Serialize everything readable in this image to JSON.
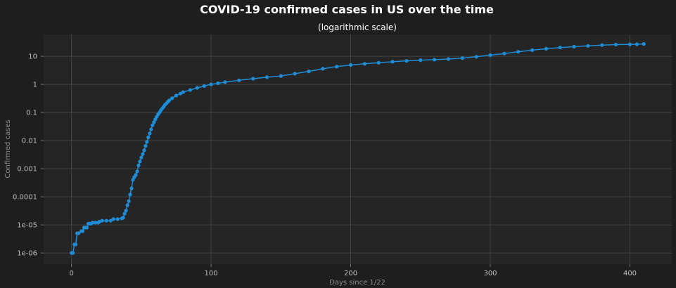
{
  "chart_data": {
    "type": "line",
    "title": "COVID-19 confirmed cases in US over the time",
    "subtitle": "(logarithmic scale)",
    "xlabel": "Days since 1/22",
    "ylabel": "Confirmed cases",
    "y_scale": "log",
    "xlim": [
      -20,
      430
    ],
    "ylim": [
      4e-07,
      60
    ],
    "x_ticks": [
      0,
      100,
      200,
      300,
      400
    ],
    "x_tick_labels": [
      "0",
      "100",
      "200",
      "300",
      "400"
    ],
    "y_ticks": [
      1e-06,
      1e-05,
      0.0001,
      0.001,
      0.01,
      0.1,
      1,
      10
    ],
    "y_tick_labels": [
      "1e-06",
      "1e-05",
      "0.0001",
      "0.001",
      "0.01",
      "0.1",
      "1",
      "10"
    ],
    "grid": true,
    "colors": {
      "background": "#1e1e1e",
      "plot_background": "#252525",
      "grid": "#4a4a4a",
      "series": "#1f8dd6"
    },
    "series": [
      {
        "marker": "circle",
        "points": [
          [
            0,
            1e-06
          ],
          [
            1,
            1e-06
          ],
          [
            2,
            2e-06
          ],
          [
            3,
            2e-06
          ],
          [
            4,
            5e-06
          ],
          [
            5,
            5e-06
          ],
          [
            7,
            6e-06
          ],
          [
            8,
            6e-06
          ],
          [
            9,
            8e-06
          ],
          [
            10,
            8e-06
          ],
          [
            11,
            8e-06
          ],
          [
            12,
            1.1e-05
          ],
          [
            13,
            1.1e-05
          ],
          [
            14,
            1.1e-05
          ],
          [
            15,
            1.2e-05
          ],
          [
            17,
            1.2e-05
          ],
          [
            19,
            1.2e-05
          ],
          [
            20,
            1.3e-05
          ],
          [
            22,
            1.4e-05
          ],
          [
            25,
            1.4e-05
          ],
          [
            28,
            1.4e-05
          ],
          [
            30,
            1.6e-05
          ],
          [
            33,
            1.6e-05
          ],
          [
            36,
            1.7e-05
          ],
          [
            37,
            1.8e-05
          ],
          [
            38,
            2.5e-05
          ],
          [
            39,
            3.2e-05
          ],
          [
            40,
            5e-05
          ],
          [
            41,
            7e-05
          ],
          [
            42,
            0.00012
          ],
          [
            43,
            0.0002
          ],
          [
            44,
            0.0004
          ],
          [
            45,
            0.0005
          ],
          [
            46,
            0.0006
          ],
          [
            47,
            0.0008
          ],
          [
            48,
            0.0013
          ],
          [
            49,
            0.0018
          ],
          [
            50,
            0.0025
          ],
          [
            51,
            0.0033
          ],
          [
            52,
            0.0045
          ],
          [
            53,
            0.0065
          ],
          [
            54,
            0.009
          ],
          [
            55,
            0.013
          ],
          [
            56,
            0.018
          ],
          [
            57,
            0.025
          ],
          [
            58,
            0.035
          ],
          [
            59,
            0.045
          ],
          [
            60,
            0.057
          ],
          [
            61,
            0.07
          ],
          [
            62,
            0.085
          ],
          [
            63,
            0.1
          ],
          [
            64,
            0.12
          ],
          [
            65,
            0.14
          ],
          [
            66,
            0.16
          ],
          [
            67,
            0.19
          ],
          [
            68,
            0.21
          ],
          [
            69,
            0.24
          ],
          [
            70,
            0.27
          ],
          [
            72,
            0.32
          ],
          [
            75,
            0.4
          ],
          [
            78,
            0.47
          ],
          [
            80,
            0.53
          ],
          [
            85,
            0.63
          ],
          [
            90,
            0.75
          ],
          [
            95,
            0.87
          ],
          [
            100,
            1.0
          ],
          [
            105,
            1.1
          ],
          [
            110,
            1.2
          ],
          [
            120,
            1.4
          ],
          [
            130,
            1.6
          ],
          [
            140,
            1.8
          ],
          [
            150,
            2.0
          ],
          [
            160,
            2.4
          ],
          [
            170,
            2.9
          ],
          [
            180,
            3.6
          ],
          [
            190,
            4.3
          ],
          [
            200,
            4.9
          ],
          [
            210,
            5.4
          ],
          [
            220,
            5.9
          ],
          [
            230,
            6.4
          ],
          [
            240,
            6.9
          ],
          [
            250,
            7.3
          ],
          [
            260,
            7.6
          ],
          [
            270,
            8.0
          ],
          [
            280,
            8.6
          ],
          [
            290,
            9.6
          ],
          [
            300,
            11.0
          ],
          [
            310,
            12.5
          ],
          [
            320,
            14.5
          ],
          [
            330,
            16.5
          ],
          [
            340,
            18.5
          ],
          [
            350,
            20.5
          ],
          [
            360,
            22.0
          ],
          [
            370,
            23.5
          ],
          [
            380,
            25.0
          ],
          [
            390,
            26.0
          ],
          [
            400,
            26.5
          ],
          [
            405,
            26.8
          ],
          [
            410,
            27.5
          ]
        ]
      }
    ]
  }
}
